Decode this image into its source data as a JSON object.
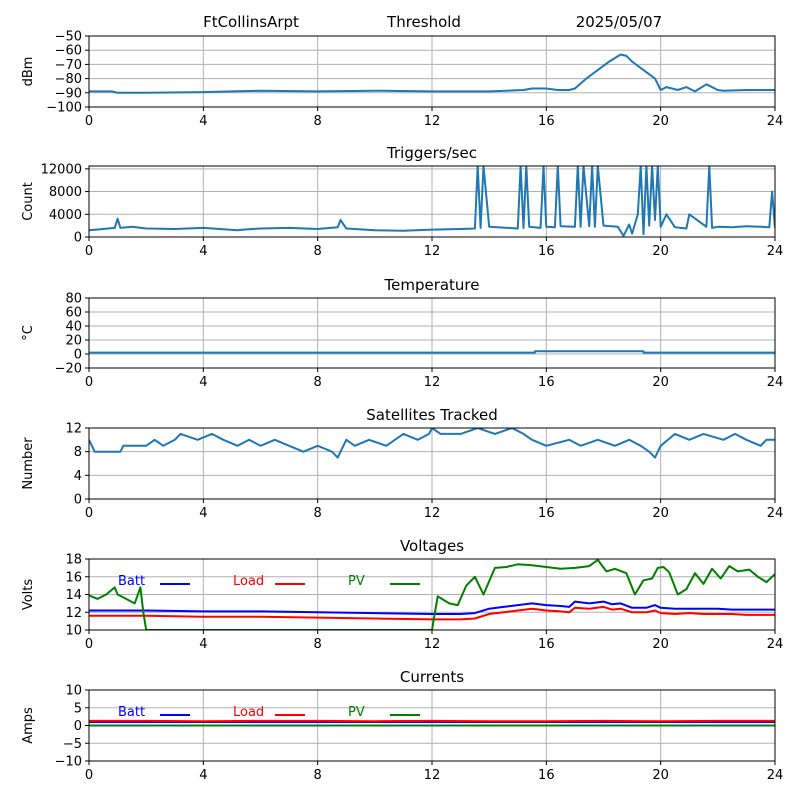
{
  "header": {
    "station": "FtCollinsArpt",
    "panel": "Threshold",
    "date": "2025/05/07"
  },
  "colors": {
    "series": "#1f77b4",
    "batt": "#0000ff",
    "load": "#ff0000",
    "pv": "#008000",
    "grid": "#b0b0b0"
  },
  "chart_data": [
    {
      "type": "line",
      "title": "",
      "ylabel": "dBm",
      "xlim": [
        0,
        24
      ],
      "ylim": [
        -100,
        -50
      ],
      "xticks": [
        0,
        4,
        8,
        12,
        16,
        20,
        24
      ],
      "yticks": [
        -50,
        -60,
        -70,
        -80,
        -90,
        -100
      ],
      "ytick_labels": [
        "−50",
        "−60",
        "−70",
        "−80",
        "−90",
        "−100"
      ],
      "grid": true,
      "series": [
        {
          "x": [
            0,
            0.8,
            1.0,
            2,
            4,
            5,
            6,
            8,
            10,
            12,
            13,
            14,
            15.2,
            15.5,
            16,
            16.4,
            16.8,
            17.0,
            17.4,
            17.8,
            18.2,
            18.6,
            18.8,
            19.0,
            19.4,
            19.8,
            20.0,
            20.2,
            20.6,
            20.9,
            21.2,
            21.6,
            22,
            22.2,
            23,
            24
          ],
          "y": [
            -89,
            -89,
            -90,
            -90,
            -89.5,
            -89,
            -88.5,
            -89,
            -88.5,
            -89,
            -89,
            -89,
            -88,
            -87,
            -87,
            -88,
            -88,
            -87,
            -80,
            -74,
            -68,
            -63,
            -64,
            -68,
            -74,
            -80,
            -88,
            -86,
            -88,
            -86,
            -89,
            -84,
            -88,
            -88.5,
            -88,
            -88
          ]
        }
      ]
    },
    {
      "type": "line",
      "title": "Triggers/sec",
      "ylabel": "Count",
      "xlim": [
        0,
        24
      ],
      "ylim": [
        0,
        12500
      ],
      "xticks": [
        0,
        4,
        8,
        12,
        16,
        20,
        24
      ],
      "yticks": [
        0,
        4000,
        8000,
        12000
      ],
      "grid": true,
      "series": [
        {
          "x": [
            0,
            0.5,
            0.9,
            1.0,
            1.1,
            1.5,
            2,
            3,
            4,
            5.2,
            5.4,
            6,
            7,
            8,
            8.7,
            8.8,
            9,
            10,
            11,
            12,
            13,
            13.5,
            13.6,
            13.7,
            13.8,
            14,
            15,
            15.1,
            15.2,
            15.3,
            15.4,
            15.8,
            15.9,
            16,
            16.3,
            16.4,
            16.5,
            17,
            17.1,
            17.2,
            17.3,
            17.5,
            17.6,
            17.7,
            17.8,
            18,
            18.5,
            18.7,
            18.9,
            19.0,
            19.2,
            19.3,
            19.4,
            19.5,
            19.6,
            19.7,
            19.8,
            19.9,
            20.0,
            20.2,
            20.5,
            20.9,
            21,
            21.6,
            21.7,
            21.8,
            22,
            22.5,
            23,
            23.5,
            23.8,
            23.9,
            24
          ],
          "y": [
            1200,
            1400,
            1600,
            3200,
            1600,
            1800,
            1500,
            1400,
            1600,
            1200,
            1300,
            1500,
            1600,
            1400,
            1700,
            3000,
            1500,
            1200,
            1100,
            1300,
            1400,
            1500,
            12500,
            1600,
            12500,
            1800,
            1500,
            12500,
            1600,
            12500,
            1800,
            1600,
            12500,
            1800,
            1700,
            12500,
            1900,
            1800,
            12500,
            1800,
            12500,
            1900,
            12500,
            1800,
            12500,
            2000,
            1800,
            200,
            2200,
            600,
            4000,
            12500,
            500,
            12500,
            2000,
            12500,
            3000,
            12500,
            1800,
            4000,
            1700,
            1500,
            4000,
            1800,
            12500,
            1600,
            1800,
            1700,
            1900,
            1800,
            1700,
            8000,
            1600
          ]
        }
      ]
    },
    {
      "type": "line",
      "title": "Temperature",
      "ylabel": "°C",
      "xlim": [
        0,
        24
      ],
      "ylim": [
        -20,
        80
      ],
      "xticks": [
        0,
        4,
        8,
        12,
        16,
        20,
        24
      ],
      "yticks": [
        -20,
        0,
        20,
        40,
        60,
        80
      ],
      "ytick_labels": [
        "−20",
        "0",
        "20",
        "40",
        "60",
        "80"
      ],
      "grid": true,
      "series": [
        {
          "x": [
            0,
            15.6,
            15.6,
            19.4,
            19.4,
            24
          ],
          "y": [
            2,
            2,
            4,
            4,
            2,
            2
          ]
        }
      ]
    },
    {
      "type": "line",
      "title": "Satellites Tracked",
      "ylabel": "Number",
      "xlim": [
        0,
        24
      ],
      "ylim": [
        0,
        12
      ],
      "xticks": [
        0,
        4,
        8,
        12,
        16,
        20,
        24
      ],
      "yticks": [
        0,
        4,
        8,
        12
      ],
      "grid": true,
      "series": [
        {
          "x": [
            0,
            0.1,
            0.2,
            1.1,
            1.2,
            2.0,
            2.3,
            2.6,
            3.0,
            3.2,
            3.8,
            4.3,
            4.7,
            5.2,
            5.6,
            6.0,
            6.5,
            7.0,
            7.5,
            8.0,
            8.5,
            8.7,
            9.0,
            9.3,
            9.8,
            10.4,
            11.0,
            11.5,
            11.9,
            12.0,
            12.3,
            13.0,
            13.6,
            14.2,
            14.8,
            15.2,
            15.5,
            16.0,
            16.8,
            17.2,
            17.8,
            18.4,
            18.9,
            19.3,
            19.6,
            19.8,
            20.0,
            20.5,
            21.0,
            21.5,
            22.2,
            22.6,
            23.0,
            23.5,
            23.7,
            24
          ],
          "y": [
            10,
            9,
            8,
            8,
            9,
            9,
            10,
            9,
            10,
            11,
            10,
            11,
            10,
            9,
            10,
            9,
            10,
            9,
            8,
            9,
            8,
            7,
            10,
            9,
            10,
            9,
            11,
            10,
            11,
            12,
            11,
            11,
            12,
            11,
            12,
            11,
            10,
            9,
            10,
            9,
            10,
            9,
            10,
            9,
            8,
            7,
            9,
            11,
            10,
            11,
            10,
            11,
            10,
            9,
            10,
            10
          ]
        }
      ]
    },
    {
      "type": "line",
      "title": "Voltages",
      "ylabel": "Volts",
      "xlim": [
        0,
        24
      ],
      "ylim": [
        10,
        18
      ],
      "xticks": [
        0,
        4,
        8,
        12,
        16,
        20,
        24
      ],
      "yticks": [
        10,
        12,
        14,
        16,
        18
      ],
      "grid": true,
      "legend": "upper-left",
      "series": [
        {
          "name": "Batt",
          "x": [
            0,
            2,
            4,
            6,
            8,
            10,
            12,
            13,
            13.5,
            14,
            14.5,
            15,
            15.5,
            16,
            16.5,
            16.8,
            17,
            17.5,
            18,
            18.3,
            18.6,
            19,
            19.5,
            19.8,
            20,
            20.5,
            21,
            21.5,
            22,
            22.5,
            23,
            23.5,
            24
          ],
          "y": [
            12.2,
            12.2,
            12.1,
            12.1,
            12.0,
            11.9,
            11.8,
            11.8,
            11.9,
            12.4,
            12.6,
            12.8,
            13.0,
            12.8,
            12.7,
            12.6,
            13.2,
            13.0,
            13.2,
            12.9,
            13.0,
            12.5,
            12.5,
            12.8,
            12.5,
            12.4,
            12.4,
            12.4,
            12.4,
            12.3,
            12.3,
            12.3,
            12.3
          ]
        },
        {
          "name": "Load",
          "x": [
            0,
            2,
            4,
            6,
            8,
            10,
            12,
            13,
            13.5,
            14,
            14.5,
            15,
            15.5,
            16,
            16.5,
            16.8,
            17,
            17.5,
            18,
            18.3,
            18.6,
            19,
            19.5,
            19.8,
            20,
            20.5,
            21,
            21.5,
            22,
            22.5,
            23,
            23.5,
            24
          ],
          "y": [
            11.6,
            11.6,
            11.5,
            11.5,
            11.4,
            11.3,
            11.2,
            11.2,
            11.3,
            11.8,
            12.0,
            12.2,
            12.4,
            12.2,
            12.1,
            12.0,
            12.5,
            12.4,
            12.6,
            12.3,
            12.4,
            12.0,
            12.0,
            12.2,
            11.9,
            11.8,
            11.9,
            11.8,
            11.8,
            11.8,
            11.7,
            11.7,
            11.7
          ]
        },
        {
          "name": "PV",
          "x": [
            0,
            0.3,
            0.6,
            0.9,
            1.0,
            1.3,
            1.6,
            1.8,
            1.9,
            2.0,
            12.0,
            12.2,
            12.6,
            12.9,
            13.2,
            13.5,
            13.8,
            14.2,
            14.6,
            15.0,
            15.5,
            16.0,
            16.5,
            17.0,
            17.5,
            17.8,
            18.1,
            18.4,
            18.8,
            19.1,
            19.4,
            19.7,
            19.9,
            20.1,
            20.3,
            20.6,
            20.9,
            21.2,
            21.5,
            21.8,
            22.1,
            22.4,
            22.7,
            23.1,
            23.4,
            23.7,
            24
          ],
          "y": [
            13.9,
            13.5,
            14.0,
            14.8,
            14.0,
            13.5,
            13.0,
            14.8,
            12.0,
            10.0,
            10.0,
            13.8,
            13.0,
            12.8,
            15.0,
            16.0,
            14.0,
            17.0,
            17.1,
            17.4,
            17.3,
            17.1,
            16.9,
            17.0,
            17.2,
            17.9,
            16.6,
            16.9,
            16.4,
            14.0,
            15.6,
            15.8,
            17.0,
            17.1,
            16.5,
            14.0,
            14.6,
            16.4,
            15.2,
            16.9,
            15.8,
            17.2,
            16.6,
            16.8,
            16.0,
            15.4,
            16.3
          ]
        }
      ]
    },
    {
      "type": "line",
      "title": "Currents",
      "ylabel": "Amps",
      "xlim": [
        0,
        24
      ],
      "ylim": [
        -10,
        10
      ],
      "xticks": [
        0,
        4,
        8,
        12,
        16,
        20,
        24
      ],
      "yticks": [
        -10,
        -5,
        0,
        5,
        10
      ],
      "ytick_labels": [
        "−10",
        "−5",
        "0",
        "5",
        "10"
      ],
      "grid": true,
      "legend": "upper-left",
      "series": [
        {
          "name": "Batt",
          "x": [
            0,
            4,
            8,
            12,
            16,
            20,
            24
          ],
          "y": [
            1.0,
            1.0,
            1.0,
            1.0,
            1.0,
            1.0,
            1.0
          ]
        },
        {
          "name": "Load",
          "x": [
            0,
            2,
            4,
            6,
            8,
            10,
            12,
            14,
            16,
            18,
            20,
            22,
            24
          ],
          "y": [
            1.3,
            1.3,
            1.2,
            1.3,
            1.3,
            1.2,
            1.3,
            1.2,
            1.2,
            1.3,
            1.2,
            1.3,
            1.3
          ]
        },
        {
          "name": "PV",
          "x": [
            0,
            24
          ],
          "y": [
            0.0,
            0.0
          ]
        }
      ]
    }
  ]
}
